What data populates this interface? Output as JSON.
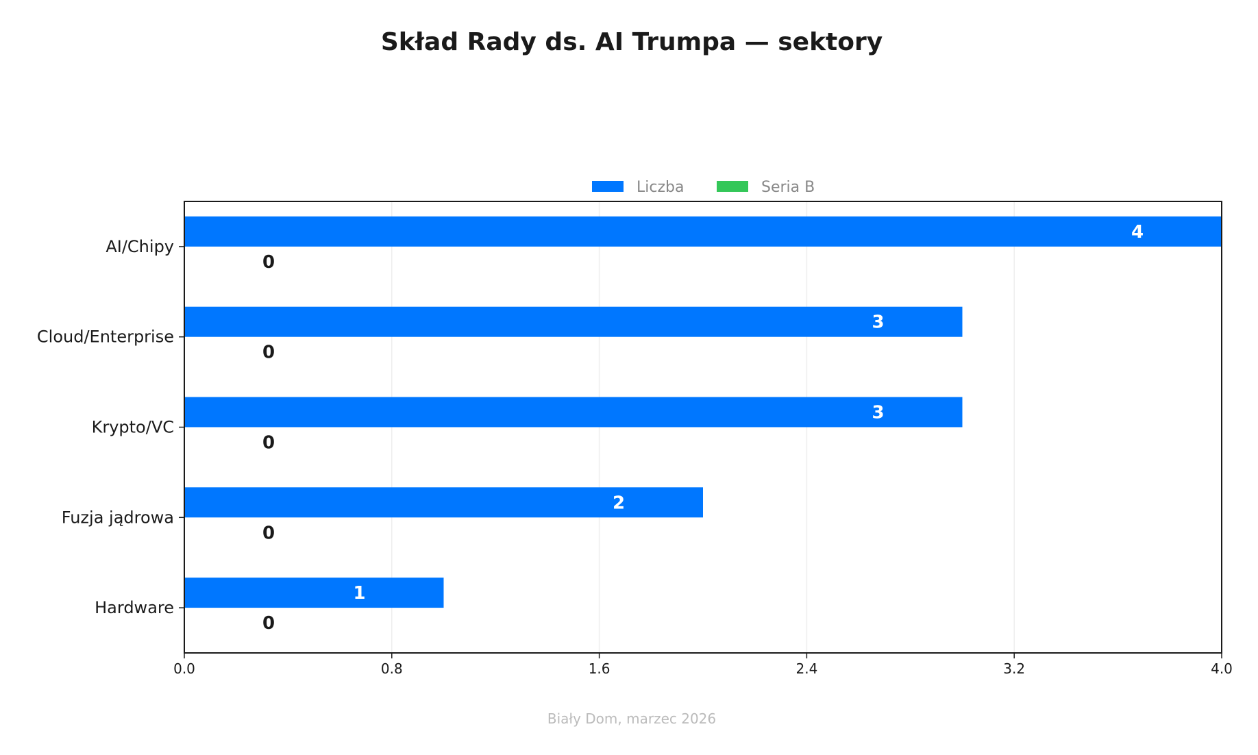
{
  "chart_data": {
    "type": "bar",
    "orientation": "horizontal",
    "title": "Skład Rady ds. AI Trumpa — sektory",
    "xlabel": "",
    "ylabel": "",
    "footer": "Biały Dom, marzec 2026",
    "categories": [
      "AI/Chipy",
      "Cloud/Enterprise",
      "Krypto/VC",
      "Fuzja jądrowa",
      "Hardware"
    ],
    "series": [
      {
        "name": "Liczba",
        "values": [
          4,
          3,
          3,
          2,
          1
        ],
        "color": "#0077FF"
      },
      {
        "name": "Seria B",
        "values": [
          0,
          0,
          0,
          0,
          0
        ],
        "color": "#34C759"
      }
    ],
    "xlim": [
      0.0,
      4.0
    ],
    "xticks": [
      "0.0",
      "0.8",
      "1.6",
      "2.4",
      "3.2",
      "4.0"
    ],
    "grid": true,
    "legend_position": "top-center",
    "colors": {
      "title": "#1a1a1a",
      "tick_text": "#1a1a1a",
      "legend_text": "#888888",
      "footer_text": "#bbbbbb",
      "axis": "#1a1a1a",
      "grid": "#eeeeee",
      "label_inside": "#ffffff",
      "label_outside": "#1a1a1a"
    }
  }
}
